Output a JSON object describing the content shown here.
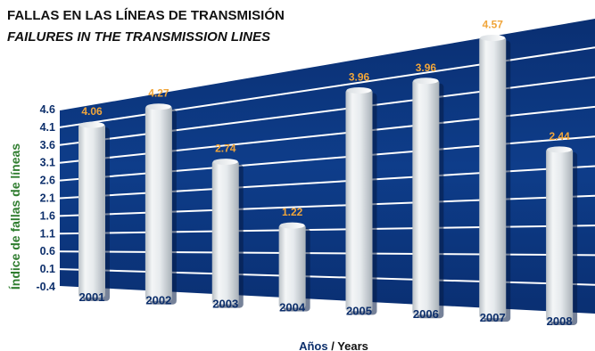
{
  "title": {
    "line1": "FALLAS EN LAS LÍNEAS DE TRANSMISIÓN",
    "line2": "FAILURES IN THE TRANSMISSION LINES"
  },
  "chart_data": {
    "type": "bar",
    "categories": [
      "2001",
      "2002",
      "2003",
      "2004",
      "2005",
      "2006",
      "2007",
      "2008"
    ],
    "values": [
      4.06,
      4.27,
      2.74,
      1.22,
      3.96,
      3.96,
      4.57,
      2.44
    ],
    "value_labels": [
      "4.06",
      "4.27",
      "2.74",
      "1.22",
      "3.96",
      "3.96",
      "4.57",
      "2.44"
    ],
    "yticks": [
      "4.6",
      "4.1",
      "3.6",
      "3.1",
      "2.6",
      "2.1",
      "1.6",
      "1.1",
      "0.6",
      "0.1",
      "-0.4"
    ],
    "ylim": [
      -0.4,
      4.6
    ],
    "ylabel": "Índice de fallas de líneas",
    "xlabel_es": "Años",
    "xlabel_sep": " / ",
    "xlabel_en": "Years",
    "grid": true,
    "legend": "none"
  },
  "colors": {
    "panel": "#0d3a82",
    "gridline": "#ffffff",
    "bar": "#e3e7ea",
    "value_label": "#f0a53a",
    "axis_text": "#0d2f6b",
    "ylabel": "#2f7d2f"
  }
}
